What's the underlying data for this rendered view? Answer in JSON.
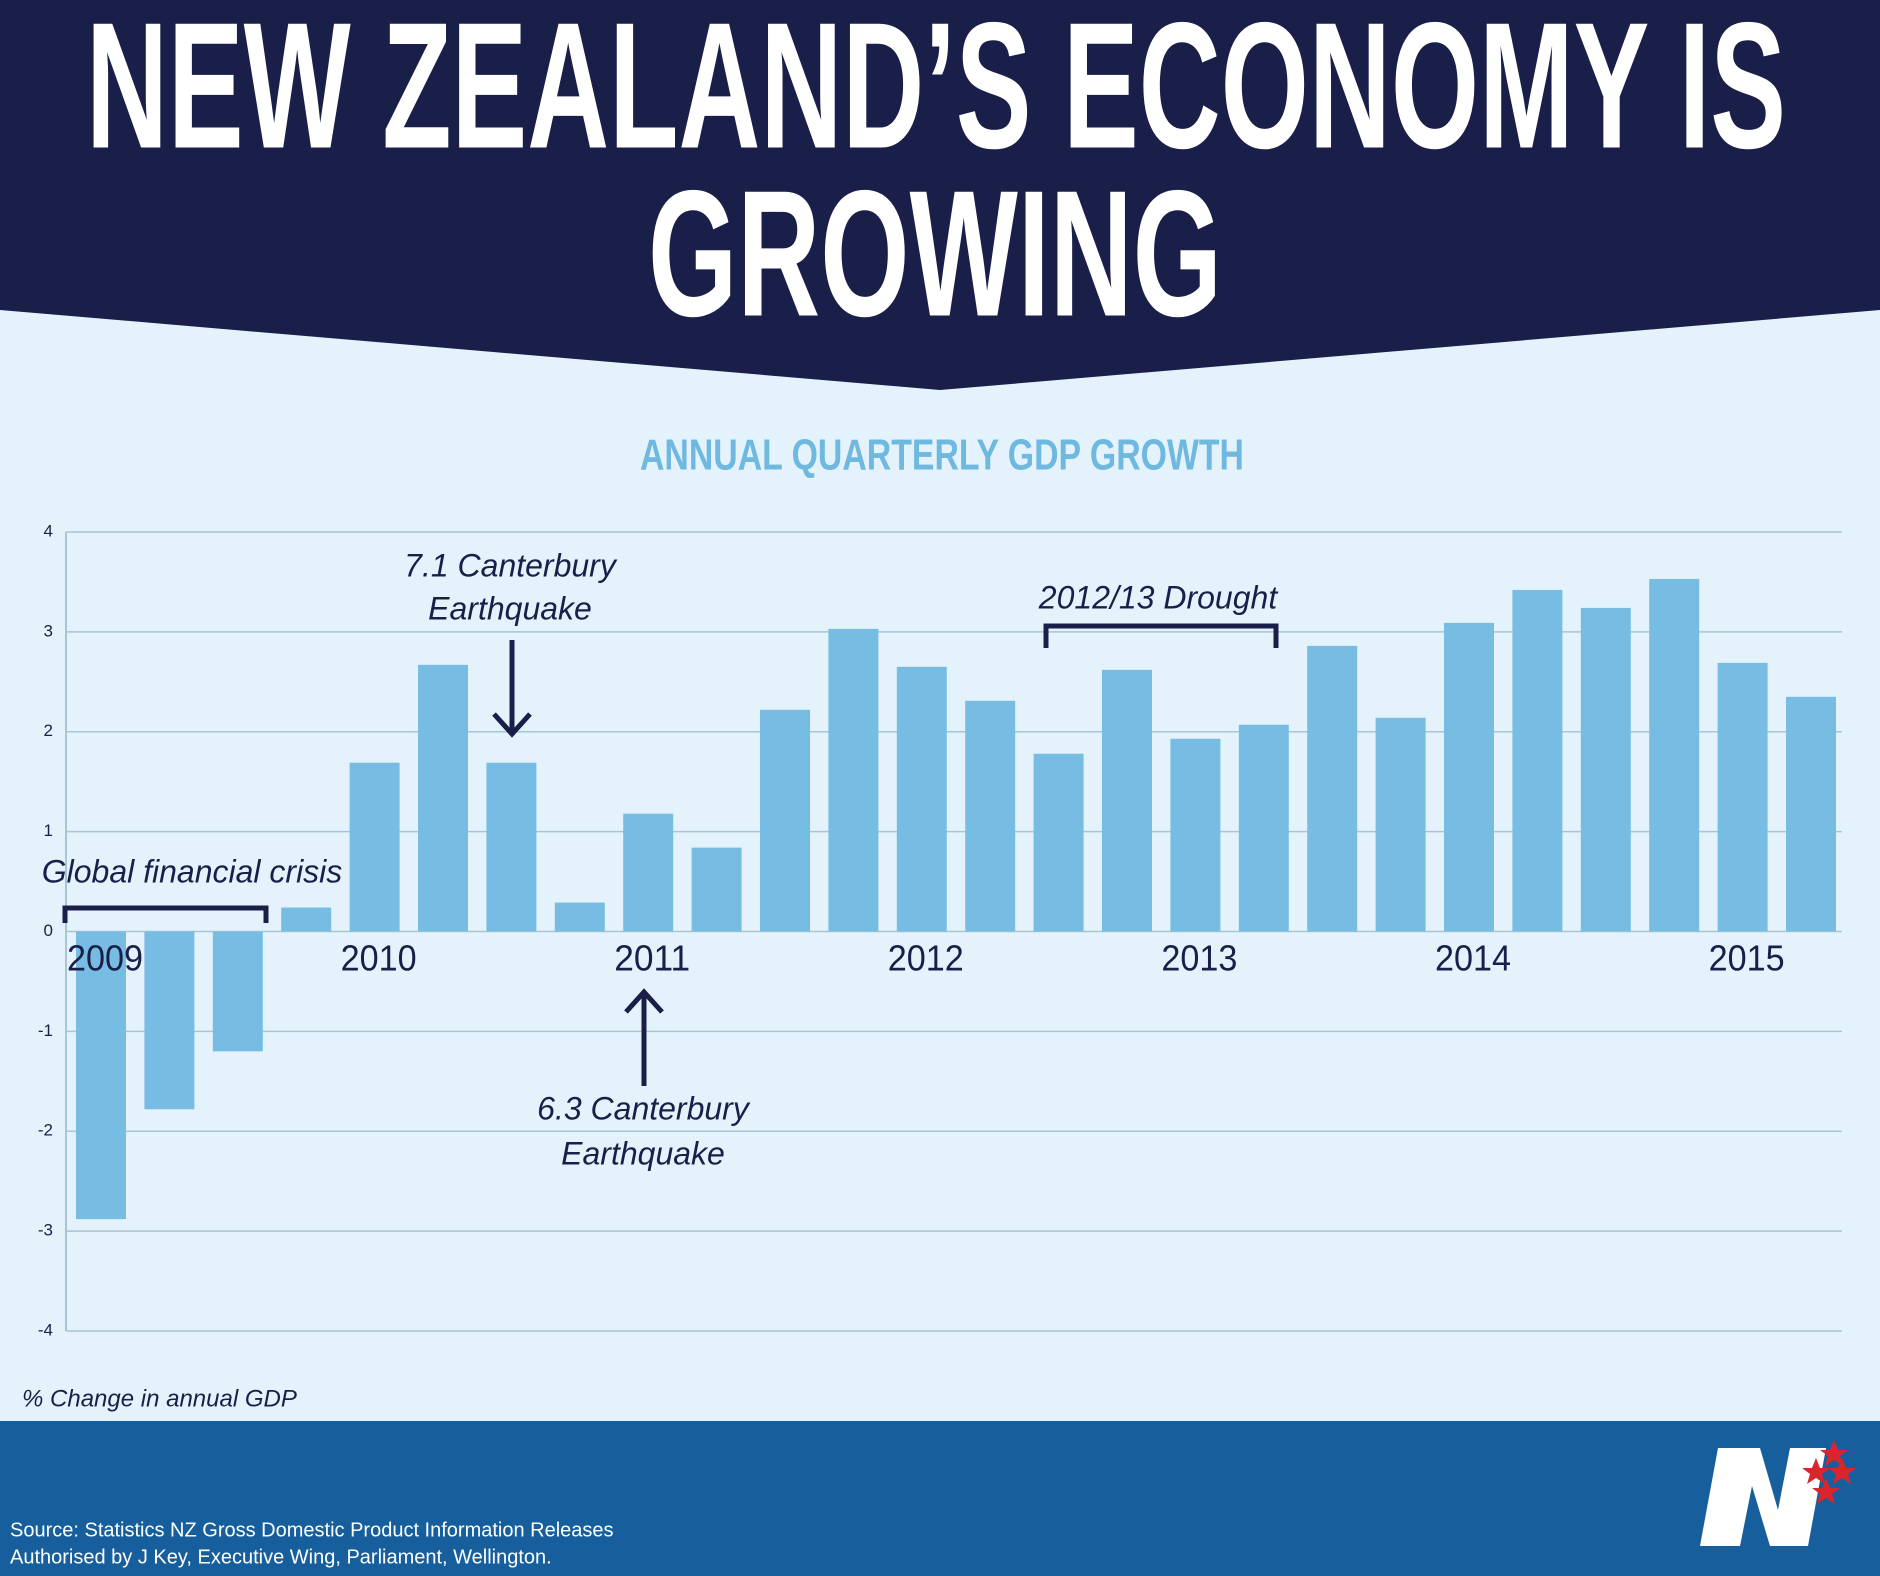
{
  "chart_data": {
    "type": "bar",
    "title": [
      "NEW ZEALAND’S ECONOMY IS",
      "GROWING"
    ],
    "subtitle": "ANNUAL QUARTERLY GDP GROWTH",
    "y_axis_label": "% Change in annual GDP",
    "categories": [
      "2009",
      null,
      null,
      null,
      "2010",
      null,
      null,
      null,
      "2011",
      null,
      null,
      null,
      "2012",
      null,
      null,
      null,
      "2013",
      null,
      null,
      null,
      "2014",
      null,
      null,
      null,
      "2015",
      null
    ],
    "values": [
      -2.88,
      -1.78,
      -1.2,
      0.24,
      1.69,
      2.67,
      1.69,
      0.29,
      1.18,
      0.84,
      2.22,
      3.03,
      2.65,
      2.31,
      1.78,
      2.62,
      1.93,
      2.07,
      2.86,
      2.14,
      3.09,
      3.42,
      3.24,
      3.53,
      2.69,
      2.35
    ],
    "color": "#77bde3",
    "ylim": [
      -4,
      4
    ],
    "yticks": [
      -4,
      -3,
      -2,
      -1,
      0,
      1,
      2,
      3,
      4
    ],
    "grid": true,
    "annotations": {
      "financial_crisis": "Global financial crisis",
      "quake_2010": [
        "7.1 Canterbury",
        "Earthquake"
      ],
      "drought": "2012/13 Drought",
      "quake_2011": [
        "6.3 Canterbury",
        "Earthquake"
      ]
    }
  },
  "footer": {
    "source": "Source: Statistics NZ Gross Domestic Product Information Releases",
    "authorised": "Authorised by J Key, Executive Wing, Parliament, Wellington."
  }
}
